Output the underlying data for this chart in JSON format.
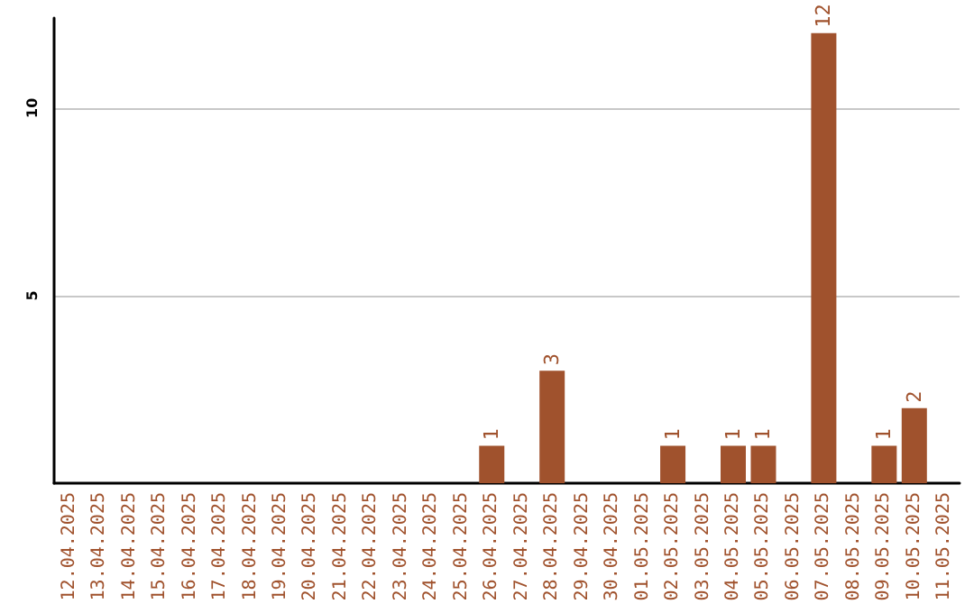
{
  "chart_data": {
    "type": "bar",
    "categories": [
      "12.04.2025",
      "13.04.2025",
      "14.04.2025",
      "15.04.2025",
      "16.04.2025",
      "17.04.2025",
      "18.04.2025",
      "19.04.2025",
      "20.04.2025",
      "21.04.2025",
      "22.04.2025",
      "23.04.2025",
      "24.04.2025",
      "25.04.2025",
      "26.04.2025",
      "27.04.2025",
      "28.04.2025",
      "29.04.2025",
      "30.04.2025",
      "01.05.2025",
      "02.05.2025",
      "03.05.2025",
      "04.05.2025",
      "05.05.2025",
      "06.05.2025",
      "07.05.2025",
      "08.05.2025",
      "09.05.2025",
      "10.05.2025",
      "11.05.2025"
    ],
    "values": [
      0,
      0,
      0,
      0,
      0,
      0,
      0,
      0,
      0,
      0,
      0,
      0,
      0,
      0,
      1,
      0,
      3,
      0,
      0,
      0,
      1,
      0,
      1,
      1,
      0,
      12,
      0,
      1,
      2,
      0
    ],
    "value_labels": [
      null,
      null,
      null,
      null,
      null,
      null,
      null,
      null,
      null,
      null,
      null,
      null,
      null,
      null,
      "1",
      null,
      "3",
      null,
      null,
      null,
      "1",
      null,
      "1",
      "1",
      null,
      "12",
      null,
      "1",
      "2",
      null
    ],
    "color": "#a0522d",
    "ylim": [
      0,
      12.4
    ],
    "yticks": [
      5,
      10
    ],
    "grid": "y"
  }
}
